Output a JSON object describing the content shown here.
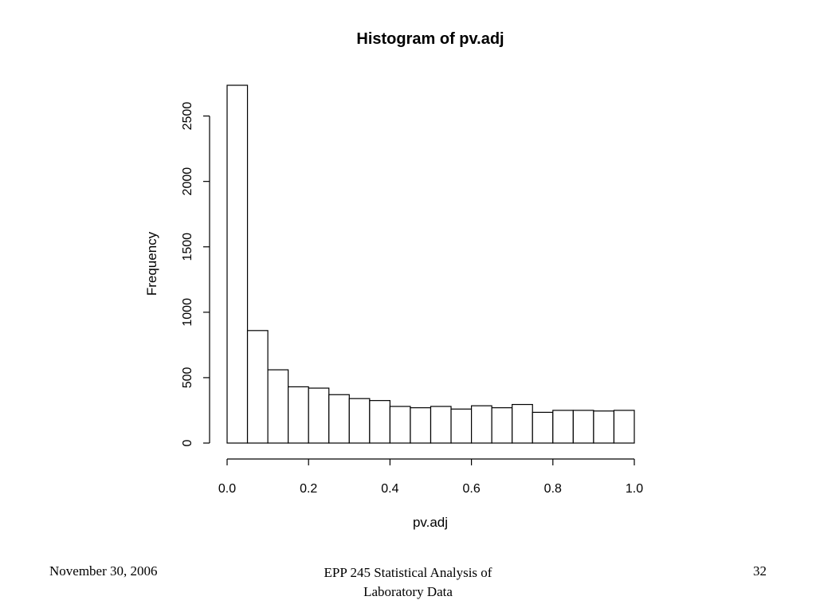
{
  "chart_data": {
    "type": "bar",
    "title": "Histogram of pv.adj",
    "xlabel": "pv.adj",
    "ylabel": "Frequency",
    "bin_edges": [
      0.0,
      0.05,
      0.1,
      0.15,
      0.2,
      0.25,
      0.3,
      0.35,
      0.4,
      0.45,
      0.5,
      0.55,
      0.6,
      0.65,
      0.7,
      0.75,
      0.8,
      0.85,
      0.9,
      0.95,
      1.0
    ],
    "values": [
      2735,
      860,
      560,
      430,
      420,
      370,
      340,
      325,
      280,
      270,
      280,
      260,
      285,
      270,
      295,
      235,
      250,
      250,
      245,
      250
    ],
    "x_ticks": [
      "0.0",
      "0.2",
      "0.4",
      "0.6",
      "0.8",
      "1.0"
    ],
    "y_ticks": [
      "0",
      "500",
      "1000",
      "1500",
      "2000",
      "2500"
    ],
    "xlim": [
      0,
      1
    ],
    "ylim": [
      0,
      2735
    ],
    "grid": false
  },
  "footer": {
    "date": "November 30, 2006",
    "course_line1": "EPP 245 Statistical Analysis of",
    "course_line2": "Laboratory Data",
    "page": "32"
  }
}
